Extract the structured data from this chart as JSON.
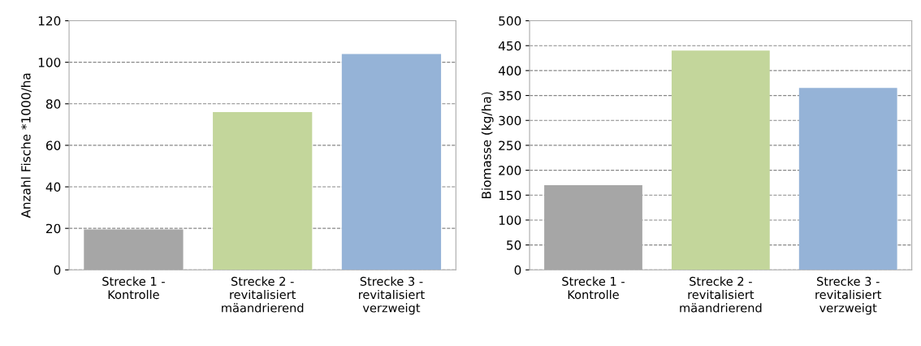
{
  "chart_data": [
    {
      "type": "bar",
      "ylabel": "Anzahl Fische *1000/ha",
      "categories": [
        "Strecke 1 -\nKontrolle",
        "Strecke 2 -\nrevitalisiert\nmäandrierend",
        "Strecke 3 -\nrevitalisiert\nverzweigt"
      ],
      "values": [
        19.5,
        76,
        104
      ],
      "colors": [
        "#a6a6a6",
        "#c3d69b",
        "#95b3d7"
      ],
      "ylim": [
        0,
        120
      ],
      "yticks": [
        0,
        20,
        40,
        60,
        80,
        100,
        120
      ],
      "grid": "y"
    },
    {
      "type": "bar",
      "ylabel": "Biomasse (kg/ha)",
      "categories": [
        "Strecke 1 -\nKontrolle",
        "Strecke 2 -\nrevitalisiert\nmäandrierend",
        "Strecke 3 -\nrevitalisiert\nverzweigt"
      ],
      "values": [
        170,
        440,
        365
      ],
      "colors": [
        "#a6a6a6",
        "#c3d69b",
        "#95b3d7"
      ],
      "ylim": [
        0,
        500
      ],
      "yticks": [
        0,
        50,
        100,
        150,
        200,
        250,
        300,
        350,
        400,
        450,
        500
      ],
      "grid": "y"
    }
  ]
}
